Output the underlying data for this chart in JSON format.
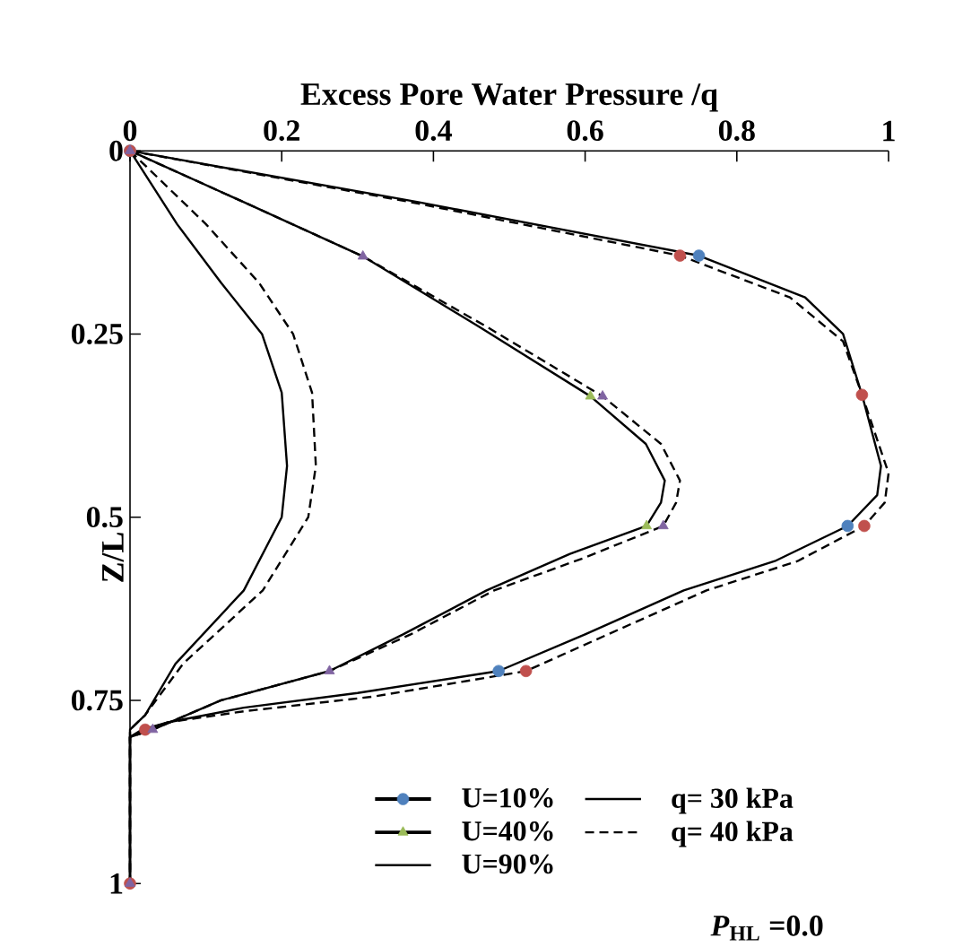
{
  "chart_data": {
    "type": "line",
    "xlabel": "Excess Pore Water Pressure /q",
    "ylabel": "Z/L",
    "xlim": [
      0,
      1
    ],
    "ylim": [
      1,
      0
    ],
    "xticks": [
      0,
      0.2,
      0.4,
      0.6,
      0.8,
      1
    ],
    "yticks": [
      0,
      0.25,
      0.5,
      0.75,
      1
    ],
    "grid": false,
    "legend": "bottom",
    "annotations": [
      "*P*$_{HL}$ =0.0"
    ],
    "series": [
      {
        "name": "U=10%",
        "type": "scatter",
        "marker": "circle",
        "color": "#4f81bd",
        "x": [
          0,
          0.75,
          0.946,
          0.486,
          null,
          null
        ],
        "values": [
          0,
          0.143,
          0.512,
          0.71,
          null,
          null
        ]
      },
      {
        "name": "q= 30 kPa",
        "line_style": "solid",
        "color": "#000000",
        "x": [
          0,
          0.38,
          0.75,
          0.89,
          0.94,
          0.965,
          0.99,
          0.985,
          0.946,
          0.85,
          0.73,
          0.6,
          0.486,
          0.3,
          0.15,
          0.05,
          0.016,
          0,
          0
        ],
        "values": [
          0,
          0.07,
          0.143,
          0.2,
          0.25,
          0.333,
          0.43,
          0.47,
          0.512,
          0.56,
          0.6,
          0.66,
          0.71,
          0.74,
          0.76,
          0.78,
          0.79,
          0.8,
          1
        ]
      },
      {
        "name": "U=40%",
        "type": "scatter",
        "marker": "triangle",
        "color": "#9bbb59",
        "x": [
          null,
          null,
          0.607,
          0.681,
          null,
          null,
          null
        ],
        "values": [
          null,
          null,
          0.335,
          0.512,
          null,
          null,
          null
        ]
      },
      {
        "name": "q= 40 kPa",
        "line_style": "dashed",
        "color": "#000000",
        "x": [
          0,
          0.37,
          0.725,
          0.87,
          0.94,
          0.965,
          1.0,
          0.995,
          0.968,
          0.88,
          0.76,
          0.63,
          0.522,
          0.32,
          0.15,
          0.05,
          0.02,
          0,
          0
        ],
        "values": [
          0,
          0.07,
          0.143,
          0.2,
          0.26,
          0.333,
          0.44,
          0.48,
          0.512,
          0.56,
          0.6,
          0.66,
          0.71,
          0.745,
          0.765,
          0.78,
          0.79,
          0.8,
          1
        ]
      },
      {
        "name": "U=90%",
        "line_style": "solid",
        "color": "#000000",
        "x": [
          0,
          0.062,
          0.12,
          0.174,
          0.2,
          0.207,
          0.2,
          0.15,
          0.06,
          0.02,
          0,
          0
        ],
        "values": [
          0,
          0.1,
          0.18,
          0.25,
          0.33,
          0.43,
          0.5,
          0.6,
          0.7,
          0.77,
          0.79,
          1
        ]
      },
      {
        "line_style": "solid",
        "color": "#000000",
        "x": [
          0,
          0.15,
          0.307,
          0.46,
          0.607,
          0.68,
          0.705,
          0.7,
          0.681,
          0.58,
          0.47,
          0.36,
          0.263,
          0.12,
          0.03,
          0,
          0
        ],
        "values": [
          0,
          0.07,
          0.144,
          0.24,
          0.335,
          0.4,
          0.45,
          0.48,
          0.512,
          0.55,
          0.6,
          0.66,
          0.71,
          0.75,
          0.79,
          0.8,
          1
        ]
      },
      {
        "line_style": "dashed",
        "color": "#000000",
        "x": [
          0,
          0.15,
          0.307,
          0.47,
          0.623,
          0.7,
          0.725,
          0.72,
          0.703,
          0.6,
          0.48,
          0.37,
          0.263,
          0.12,
          0.03,
          0,
          0
        ],
        "values": [
          0,
          0.07,
          0.144,
          0.24,
          0.335,
          0.4,
          0.45,
          0.48,
          0.512,
          0.555,
          0.6,
          0.66,
          0.71,
          0.75,
          0.79,
          0.8,
          1
        ]
      },
      {
        "line_style": "dashed",
        "color": "#000000",
        "x": [
          0,
          0.1,
          0.17,
          0.215,
          0.24,
          0.245,
          0.235,
          0.175,
          0.07,
          0.02,
          0,
          0
        ],
        "values": [
          0,
          0.1,
          0.18,
          0.25,
          0.33,
          0.43,
          0.5,
          0.6,
          0.7,
          0.77,
          0.79,
          1
        ]
      },
      {
        "type": "scatter",
        "marker": "circle",
        "color": "#c0504d",
        "x": [
          0,
          0.725,
          0.965,
          0.968,
          0.522,
          0.02,
          0
        ],
        "values": [
          0,
          0.143,
          0.333,
          0.512,
          0.71,
          0.79,
          1
        ]
      },
      {
        "type": "scatter",
        "marker": "triangle",
        "color": "#8064a2",
        "x": [
          0,
          0.307,
          0.623,
          0.703,
          0.263,
          0.03,
          0
        ],
        "values": [
          0,
          0.144,
          0.335,
          0.512,
          0.71,
          0.79,
          1
        ]
      }
    ]
  }
}
